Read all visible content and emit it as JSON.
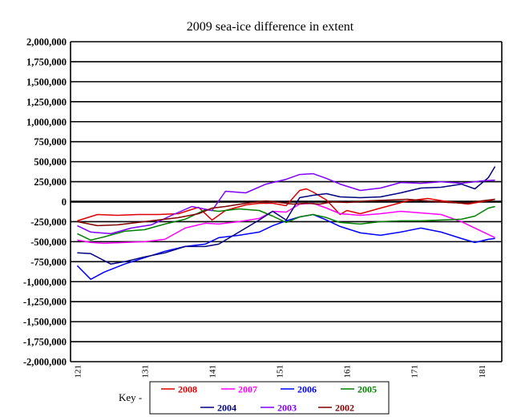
{
  "chart_data": {
    "type": "line",
    "title": "2009 sea-ice difference in extent",
    "xlabel": "",
    "ylabel": "",
    "xlim": [
      120,
      184
    ],
    "ylim": [
      -2000000,
      2000000
    ],
    "grid": true,
    "y_ticks": [
      "2,000,000",
      "1,750,000",
      "1,500,000",
      "1,250,000",
      "1,000,000",
      "750,000",
      "500,000",
      "250,000",
      "0",
      "-250,000",
      "-500,000",
      "-750,000",
      "-1,000,000",
      "-1,250,000",
      "-1,500,000",
      "-1,750,000",
      "-2,000,000"
    ],
    "x_ticks": [
      "121",
      "131",
      "141",
      "151",
      "161",
      "171",
      "181"
    ],
    "legend_title": "Key -",
    "legend_position": "bottom",
    "series": [
      {
        "name": "2008",
        "color": "#e00000",
        "x": [
          121,
          124,
          127,
          130,
          133,
          136,
          139,
          141,
          143,
          146,
          148,
          150,
          152,
          154,
          155,
          156,
          158,
          160,
          161,
          163,
          166,
          170,
          173,
          176,
          179,
          181,
          183
        ],
        "y": [
          -240000,
          -160000,
          -170000,
          -160000,
          -160000,
          -150000,
          -70000,
          -230000,
          -110000,
          -40000,
          -20000,
          -20000,
          -50000,
          140000,
          160000,
          120000,
          20000,
          -160000,
          -110000,
          -150000,
          -80000,
          10000,
          40000,
          0,
          -30000,
          0,
          30000
        ]
      },
      {
        "name": "2007",
        "color": "#ff00ff",
        "x": [
          121,
          123,
          125,
          128,
          131,
          134,
          137,
          140,
          142,
          145,
          148,
          150,
          152,
          154,
          156,
          158,
          160,
          163,
          166,
          169,
          172,
          175,
          178,
          181,
          183
        ],
        "y": [
          -480000,
          -510000,
          -520000,
          -510000,
          -500000,
          -470000,
          -330000,
          -270000,
          -280000,
          -250000,
          -210000,
          -120000,
          -130000,
          -30000,
          -20000,
          -80000,
          -150000,
          -170000,
          -150000,
          -120000,
          -140000,
          -160000,
          -250000,
          -370000,
          -450000
        ]
      },
      {
        "name": "2006",
        "color": "#0000ff",
        "x": [
          121,
          123,
          125,
          128,
          131,
          134,
          137,
          140,
          142,
          145,
          148,
          150,
          152,
          154,
          156,
          158,
          160,
          163,
          166,
          169,
          172,
          175,
          178,
          180,
          182,
          183
        ],
        "y": [
          -800000,
          -970000,
          -880000,
          -780000,
          -700000,
          -620000,
          -560000,
          -530000,
          -450000,
          -420000,
          -380000,
          -300000,
          -240000,
          -190000,
          -160000,
          -230000,
          -310000,
          -390000,
          -420000,
          -380000,
          -330000,
          -380000,
          -460000,
          -510000,
          -470000,
          -460000
        ]
      },
      {
        "name": "2005",
        "color": "#008000",
        "x": [
          121,
          123,
          125,
          128,
          131,
          134,
          137,
          140,
          142,
          145,
          148,
          150,
          152,
          154,
          156,
          158,
          160,
          163,
          166,
          169,
          172,
          175,
          178,
          180,
          182,
          183
        ],
        "y": [
          -400000,
          -480000,
          -440000,
          -370000,
          -350000,
          -280000,
          -220000,
          -100000,
          -120000,
          -90000,
          -110000,
          -180000,
          -260000,
          -190000,
          -160000,
          -200000,
          -260000,
          -280000,
          -250000,
          -240000,
          -240000,
          -230000,
          -220000,
          -180000,
          -80000,
          -60000
        ]
      },
      {
        "name": "2004",
        "color": "#000080",
        "x": [
          121,
          123,
          126,
          128,
          131,
          134,
          137,
          140,
          142,
          145,
          148,
          150,
          152,
          154,
          156,
          158,
          160,
          163,
          166,
          169,
          172,
          175,
          178,
          180,
          182,
          183
        ],
        "y": [
          -640000,
          -650000,
          -780000,
          -750000,
          -690000,
          -640000,
          -560000,
          -560000,
          -530000,
          -380000,
          -230000,
          -120000,
          -230000,
          50000,
          80000,
          100000,
          60000,
          50000,
          60000,
          110000,
          170000,
          180000,
          220000,
          160000,
          300000,
          440000
        ]
      },
      {
        "name": "2003",
        "color": "#8000ff",
        "x": [
          121,
          123,
          126,
          129,
          132,
          135,
          138,
          141,
          143,
          146,
          149,
          152,
          154,
          156,
          158,
          160,
          163,
          166,
          169,
          172,
          175,
          178,
          181,
          183
        ],
        "y": [
          -300000,
          -380000,
          -400000,
          -330000,
          -290000,
          -170000,
          -60000,
          -110000,
          130000,
          110000,
          220000,
          280000,
          340000,
          350000,
          290000,
          220000,
          140000,
          170000,
          240000,
          230000,
          250000,
          230000,
          260000,
          270000
        ]
      },
      {
        "name": "2002",
        "color": "#800000",
        "x": [
          121,
          124,
          127,
          130,
          133,
          136,
          139,
          141,
          143,
          146,
          149,
          151,
          153,
          155,
          157,
          159,
          161,
          164,
          167,
          170,
          173,
          176,
          179,
          181,
          183
        ],
        "y": [
          -250000,
          -300000,
          -290000,
          -260000,
          -230000,
          -200000,
          -150000,
          -80000,
          -60000,
          -20000,
          10000,
          -10000,
          -30000,
          -20000,
          -30000,
          0,
          -10000,
          10000,
          20000,
          30000,
          10000,
          -10000,
          -20000,
          10000,
          30000
        ]
      }
    ]
  }
}
